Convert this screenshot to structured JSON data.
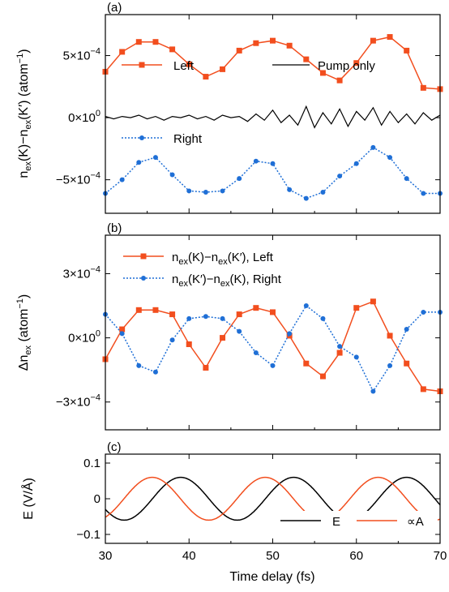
{
  "colors": {
    "left": "#F24E1E",
    "right": "#1F6FD6",
    "pump": "#000000",
    "E": "#000000",
    "A": "#F24E1E"
  },
  "xaxis": {
    "label": "Time delay (fs)",
    "range": [
      30,
      70
    ],
    "ticks": [
      "30",
      "40",
      "50",
      "60",
      "70"
    ]
  },
  "chart_data": [
    {
      "panel_label": "(a)",
      "type": "line",
      "ylabel": {
        "main": "n",
        "sub1": "ex",
        "mid1": "(K)−n",
        "sub2": "ex",
        "mid2": "(K′) (atom",
        "sup": "−1",
        "tail": ")"
      },
      "yticks": [
        {
          "mant": "5×10",
          "exp": "−4",
          "value": 0.0005
        },
        {
          "mant": "0×10",
          "exp": "0",
          "value": 0
        },
        {
          "mant": "−5×10",
          "exp": "−4",
          "value": -0.0005
        }
      ],
      "ylim": [
        -0.00077,
        0.00083
      ],
      "legend_placement": "top",
      "series": [
        {
          "name": "Left",
          "marker": "square",
          "style": "solid",
          "x": [
            30,
            32,
            34,
            36,
            38,
            40,
            42,
            44,
            46,
            48,
            50,
            52,
            54,
            56,
            58,
            60,
            62,
            64,
            66,
            68,
            70
          ],
          "y": [
            0.00037,
            0.00053,
            0.00061,
            0.00061,
            0.00055,
            0.00043,
            0.00033,
            0.00039,
            0.00054,
            0.0006,
            0.00062,
            0.00058,
            0.00047,
            0.00036,
            0.0003,
            0.00044,
            0.00062,
            0.00065,
            0.00054,
            0.00024,
            0.00023
          ]
        },
        {
          "name": "Pump only",
          "marker": "none",
          "style": "solid",
          "x": [
            30,
            31,
            32,
            33,
            34,
            35,
            36,
            37,
            38,
            39,
            40,
            41,
            42,
            43,
            44,
            45,
            46,
            47,
            48,
            49,
            50,
            51,
            52,
            53,
            54,
            55,
            56,
            57,
            58,
            59,
            60,
            61,
            62,
            63,
            64,
            65,
            66,
            67,
            68,
            69,
            70
          ],
          "y": [
            1e-05,
            -1e-05,
            1e-05,
            0.0,
            2e-05,
            -1e-05,
            1e-05,
            -2e-05,
            1e-05,
            0.0,
            2e-05,
            -1e-05,
            1e-05,
            -2e-05,
            2e-05,
            0.0,
            1e-05,
            -3e-05,
            3e-05,
            -2e-05,
            6e-05,
            -4e-05,
            2e-05,
            -6e-05,
            9e-05,
            -8e-05,
            4e-05,
            -5e-05,
            7e-05,
            -7e-05,
            5e-05,
            -2e-05,
            8e-05,
            -6e-05,
            5e-05,
            -4e-05,
            3e-05,
            -5e-05,
            4e-05,
            -2e-05,
            2e-05
          ]
        },
        {
          "name": "Right",
          "marker": "circle",
          "style": "dotted",
          "x": [
            30,
            32,
            34,
            36,
            38,
            40,
            42,
            44,
            46,
            48,
            50,
            52,
            54,
            56,
            58,
            60,
            62,
            64,
            66,
            68,
            70
          ],
          "y": [
            -0.00061,
            -0.0005,
            -0.00036,
            -0.00032,
            -0.00046,
            -0.00059,
            -0.0006,
            -0.00059,
            -0.00049,
            -0.00035,
            -0.00037,
            -0.00058,
            -0.00065,
            -0.0006,
            -0.00047,
            -0.00037,
            -0.00024,
            -0.00032,
            -0.00049,
            -0.00061,
            -0.00061
          ]
        }
      ]
    },
    {
      "panel_label": "(b)",
      "type": "line",
      "ylabel": {
        "main": "Δn",
        "sub1": "ex",
        "mid1": " (atom",
        "sup": "−1",
        "tail": ")"
      },
      "yticks": [
        {
          "mant": "3×10",
          "exp": "−4",
          "value": 0.0003
        },
        {
          "mant": "0×10",
          "exp": "0",
          "value": 0
        },
        {
          "mant": "−3×10",
          "exp": "−4",
          "value": -0.0003
        }
      ],
      "ylim": [
        -0.00043,
        0.00048
      ],
      "legend_placement": "top",
      "series": [
        {
          "name_parts": [
            "n",
            "ex",
            "(K)−n",
            "ex",
            "(K′), Left"
          ],
          "marker": "square",
          "style": "solid",
          "x": [
            30,
            32,
            34,
            36,
            38,
            40,
            42,
            44,
            46,
            48,
            50,
            52,
            54,
            56,
            58,
            60,
            62,
            64,
            66,
            68,
            70
          ],
          "y": [
            -0.0001,
            4e-05,
            0.00013,
            0.00013,
            0.00011,
            -3e-05,
            -0.00014,
            0.0,
            0.00011,
            0.00014,
            0.00012,
            1e-05,
            -0.00012,
            -0.00018,
            -7e-05,
            0.00014,
            0.00017,
            1e-05,
            -0.00012,
            -0.00024,
            -0.00025
          ]
        },
        {
          "name_parts": [
            "n",
            "ex",
            "(K′)−n",
            "ex",
            "(K), Right"
          ],
          "marker": "circle",
          "style": "dotted",
          "x": [
            30,
            32,
            34,
            36,
            38,
            40,
            42,
            44,
            46,
            48,
            50,
            52,
            54,
            56,
            58,
            60,
            62,
            64,
            66,
            68,
            70
          ],
          "y": [
            0.00011,
            2e-05,
            -0.00013,
            -0.00016,
            -1e-05,
            9e-05,
            0.0001,
            9e-05,
            3e-05,
            -7e-05,
            -0.00013,
            2e-05,
            0.00015,
            9e-05,
            -4e-05,
            -9e-05,
            -0.00025,
            -0.00013,
            4e-05,
            0.00012,
            0.00012
          ]
        }
      ]
    },
    {
      "panel_label": "(c)",
      "type": "line",
      "ylabel": {
        "main": "E (V/Å)"
      },
      "yticks": [
        {
          "mant": "0.1",
          "value": 0.1
        },
        {
          "mant": "0",
          "value": 0
        },
        {
          "mant": "−0.1",
          "value": -0.1
        }
      ],
      "ylim": [
        -0.125,
        0.125
      ],
      "legend_placement": "bottom-right",
      "series": [
        {
          "name": "E",
          "amplitude": 0.06,
          "period_fs": 13.5,
          "peak_fs": 39.0
        },
        {
          "name": "∝A",
          "amplitude": 0.06,
          "period_fs": 13.5,
          "peak_fs": 35.6
        }
      ]
    }
  ]
}
